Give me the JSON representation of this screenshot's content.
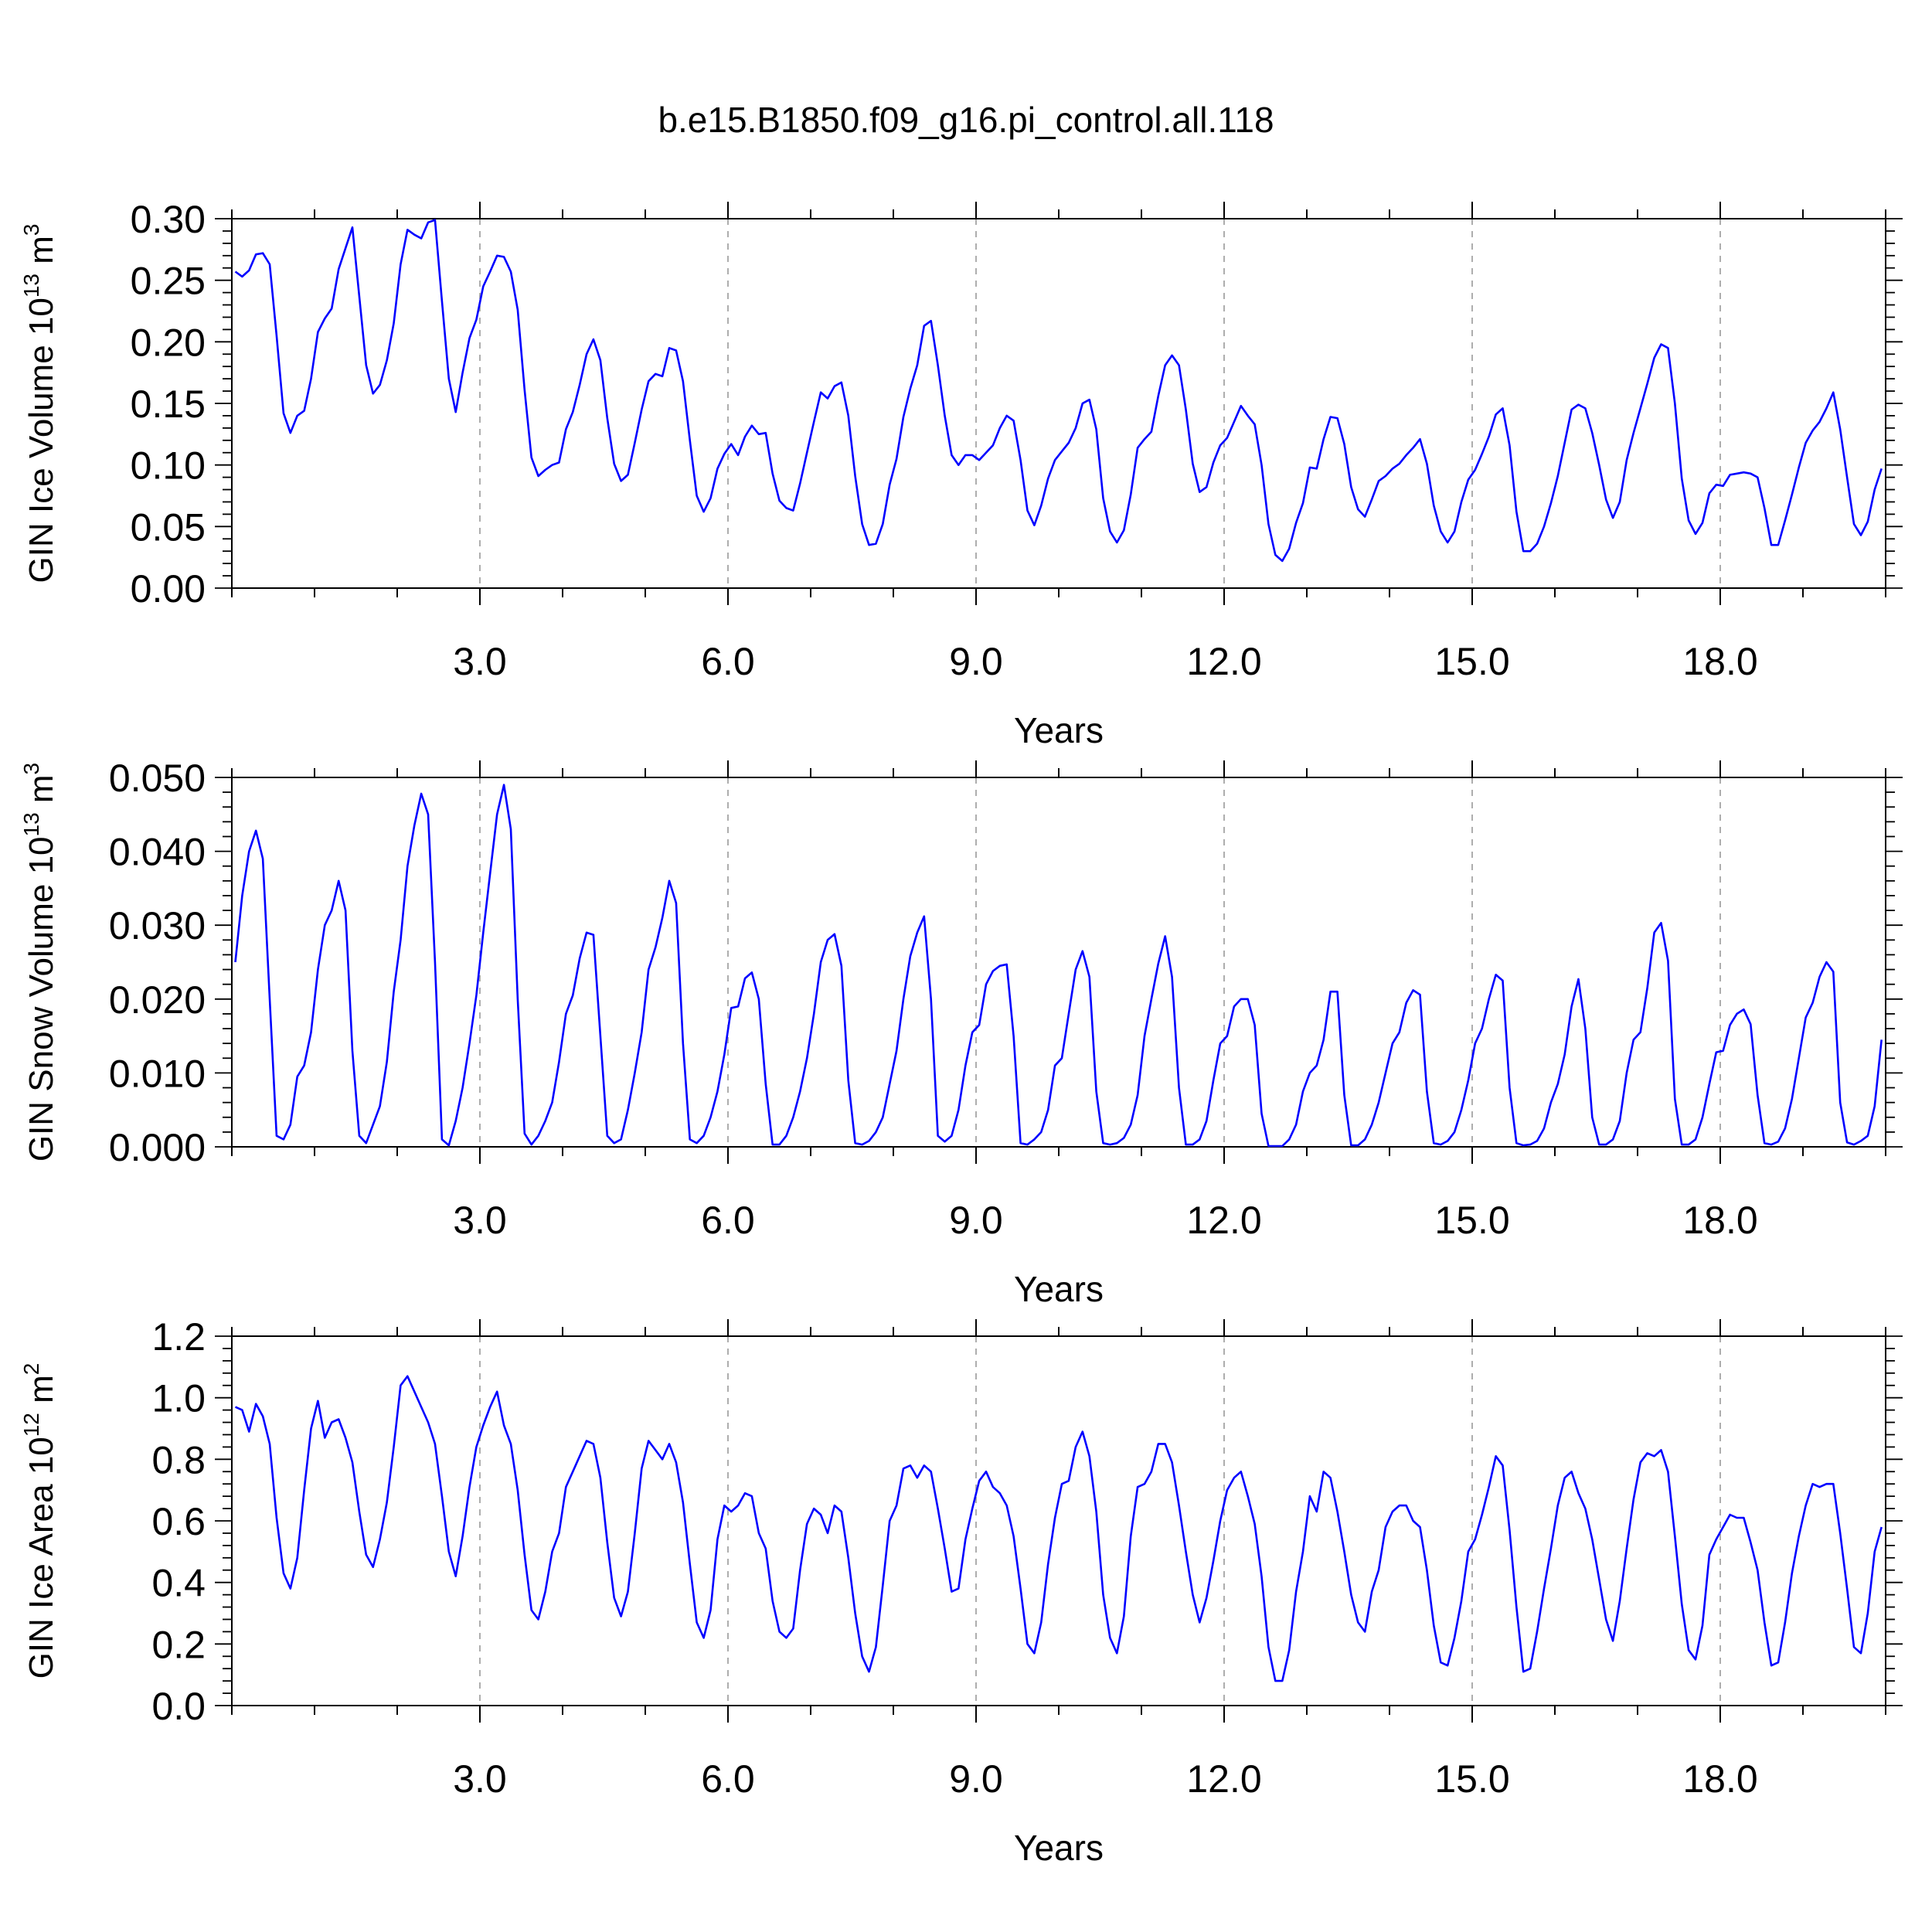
{
  "title": "b.e15.B1850.f09_g16.pi_control.all.118",
  "colors": {
    "series": "#0000ff",
    "axis": "#000000",
    "grid": "#999999",
    "background": "#ffffff"
  },
  "chart_data": [
    {
      "type": "line",
      "ylabel": "GIN Ice Volume 10",
      "ylabel_exp": "13",
      "ylabel_unit": " m",
      "ylabel_unit_exp": "3",
      "xlabel": "Years",
      "xlim": [
        0,
        20
      ],
      "ylim": [
        0,
        0.3
      ],
      "xticks": [
        3,
        6,
        9,
        12,
        15,
        18
      ],
      "xtick_labels": [
        "3.0",
        "6.0",
        "9.0",
        "12.0",
        "15.0",
        "18.0"
      ],
      "yticks": [
        0,
        0.05,
        0.1,
        0.15,
        0.2,
        0.25,
        0.3
      ],
      "ytick_labels": [
        "0.00",
        "0.05",
        "0.10",
        "0.15",
        "0.20",
        "0.25",
        "0.30"
      ],
      "grid": "vertical dashed at major x ticks",
      "x_start": 0.0417,
      "x_step": 0.0833,
      "values": [
        0.257,
        0.253,
        0.258,
        0.271,
        0.272,
        0.263,
        0.205,
        0.142,
        0.126,
        0.14,
        0.144,
        0.17,
        0.208,
        0.219,
        0.227,
        0.259,
        0.276,
        0.293,
        0.237,
        0.181,
        0.158,
        0.165,
        0.185,
        0.215,
        0.263,
        0.291,
        0.287,
        0.284,
        0.297,
        0.299,
        0.233,
        0.17,
        0.143,
        0.175,
        0.203,
        0.218,
        0.245,
        0.257,
        0.27,
        0.269,
        0.257,
        0.226,
        0.161,
        0.106,
        0.091,
        0.096,
        0.1,
        0.102,
        0.129,
        0.143,
        0.165,
        0.19,
        0.202,
        0.185,
        0.138,
        0.101,
        0.087,
        0.092,
        0.118,
        0.145,
        0.168,
        0.174,
        0.172,
        0.195,
        0.193,
        0.168,
        0.12,
        0.075,
        0.062,
        0.073,
        0.097,
        0.109,
        0.117,
        0.108,
        0.123,
        0.132,
        0.125,
        0.126,
        0.093,
        0.071,
        0.065,
        0.063,
        0.085,
        0.11,
        0.135,
        0.159,
        0.154,
        0.164,
        0.167,
        0.14,
        0.091,
        0.052,
        0.035,
        0.036,
        0.052,
        0.084,
        0.105,
        0.139,
        0.162,
        0.181,
        0.213,
        0.217,
        0.181,
        0.14,
        0.108,
        0.1,
        0.108,
        0.108,
        0.104,
        0.11,
        0.116,
        0.13,
        0.14,
        0.136,
        0.104,
        0.063,
        0.051,
        0.067,
        0.089,
        0.104,
        0.111,
        0.118,
        0.13,
        0.15,
        0.153,
        0.129,
        0.073,
        0.046,
        0.037,
        0.047,
        0.076,
        0.114,
        0.121,
        0.127,
        0.156,
        0.181,
        0.189,
        0.181,
        0.145,
        0.101,
        0.078,
        0.082,
        0.102,
        0.116,
        0.122,
        0.135,
        0.148,
        0.14,
        0.133,
        0.1,
        0.052,
        0.027,
        0.022,
        0.032,
        0.053,
        0.069,
        0.098,
        0.097,
        0.121,
        0.139,
        0.138,
        0.117,
        0.082,
        0.064,
        0.058,
        0.072,
        0.087,
        0.091,
        0.097,
        0.101,
        0.108,
        0.114,
        0.121,
        0.101,
        0.067,
        0.046,
        0.037,
        0.046,
        0.07,
        0.088,
        0.096,
        0.109,
        0.123,
        0.141,
        0.146,
        0.116,
        0.062,
        0.03,
        0.03,
        0.036,
        0.05,
        0.069,
        0.091,
        0.118,
        0.145,
        0.149,
        0.146,
        0.126,
        0.1,
        0.072,
        0.057,
        0.07,
        0.104,
        0.126,
        0.146,
        0.166,
        0.187,
        0.198,
        0.195,
        0.15,
        0.089,
        0.055,
        0.044,
        0.053,
        0.077,
        0.084,
        0.083,
        0.092,
        0.093,
        0.094,
        0.093,
        0.09,
        0.065,
        0.035,
        0.035,
        0.055,
        0.076,
        0.098,
        0.118,
        0.128,
        0.135,
        0.146,
        0.159,
        0.129,
        0.09,
        0.052,
        0.043,
        0.054,
        0.08,
        0.097
      ]
    },
    {
      "type": "line",
      "ylabel": "GIN Snow Volume 10",
      "ylabel_exp": "13",
      "ylabel_unit": " m",
      "ylabel_unit_exp": "3",
      "xlabel": "Years",
      "xlim": [
        0,
        20
      ],
      "ylim": [
        0,
        0.05
      ],
      "xticks": [
        3,
        6,
        9,
        12,
        15,
        18
      ],
      "xtick_labels": [
        "3.0",
        "6.0",
        "9.0",
        "12.0",
        "15.0",
        "18.0"
      ],
      "yticks": [
        0,
        0.01,
        0.02,
        0.03,
        0.04,
        0.05
      ],
      "ytick_labels": [
        "0.000",
        "0.010",
        "0.020",
        "0.030",
        "0.040",
        "0.050"
      ],
      "grid": "vertical dashed at major x ticks",
      "x_start": 0.0417,
      "x_step": 0.0833,
      "values": [
        0.025,
        0.034,
        0.04,
        0.0428,
        0.039,
        0.02,
        0.0015,
        0.001,
        0.003,
        0.0095,
        0.011,
        0.0155,
        0.024,
        0.03,
        0.032,
        0.036,
        0.032,
        0.013,
        0.0015,
        0.0005,
        0.003,
        0.0055,
        0.0115,
        0.021,
        0.028,
        0.038,
        0.0435,
        0.0478,
        0.045,
        0.025,
        0.001,
        0.0002,
        0.0035,
        0.008,
        0.014,
        0.0205,
        0.029,
        0.037,
        0.045,
        0.049,
        0.043,
        0.02,
        0.0018,
        0.0003,
        0.0015,
        0.0035,
        0.006,
        0.0115,
        0.018,
        0.0205,
        0.0255,
        0.029,
        0.0287,
        0.015,
        0.0015,
        0.0005,
        0.001,
        0.005,
        0.01,
        0.0155,
        0.024,
        0.027,
        0.031,
        0.036,
        0.033,
        0.014,
        0.001,
        0.0005,
        0.0015,
        0.004,
        0.0075,
        0.0125,
        0.0188,
        0.019,
        0.0228,
        0.0236,
        0.02,
        0.0085,
        0.0003,
        0.0003,
        0.0015,
        0.004,
        0.0075,
        0.012,
        0.018,
        0.025,
        0.028,
        0.0288,
        0.0245,
        0.009,
        0.0005,
        0.0003,
        0.0008,
        0.002,
        0.004,
        0.0085,
        0.013,
        0.02,
        0.0258,
        0.029,
        0.0312,
        0.02,
        0.0015,
        0.0007,
        0.0015,
        0.005,
        0.011,
        0.0155,
        0.0165,
        0.022,
        0.0238,
        0.0245,
        0.0247,
        0.015,
        0.0005,
        0.0003,
        0.001,
        0.002,
        0.005,
        0.011,
        0.012,
        0.018,
        0.024,
        0.0265,
        0.023,
        0.0075,
        0.0005,
        0.0003,
        0.0005,
        0.0012,
        0.003,
        0.007,
        0.015,
        0.02,
        0.0248,
        0.0285,
        0.023,
        0.008,
        0.0003,
        0.0003,
        0.001,
        0.0035,
        0.009,
        0.014,
        0.015,
        0.019,
        0.02,
        0.02,
        0.0165,
        0.0045,
        0.0001,
        0.0001,
        0.0001,
        0.001,
        0.003,
        0.0075,
        0.01,
        0.011,
        0.0145,
        0.021,
        0.021,
        0.007,
        0.0002,
        0.0002,
        0.001,
        0.003,
        0.006,
        0.01,
        0.014,
        0.0155,
        0.0195,
        0.0212,
        0.0206,
        0.0075,
        0.0005,
        0.0003,
        0.0008,
        0.002,
        0.005,
        0.009,
        0.014,
        0.016,
        0.02,
        0.0233,
        0.0225,
        0.008,
        0.0005,
        0.0002,
        0.0003,
        0.0008,
        0.0025,
        0.006,
        0.0085,
        0.0125,
        0.019,
        0.0227,
        0.016,
        0.004,
        0.0003,
        0.0003,
        0.001,
        0.0035,
        0.01,
        0.0145,
        0.0155,
        0.0215,
        0.029,
        0.0303,
        0.0252,
        0.0065,
        0.0003,
        0.0003,
        0.001,
        0.004,
        0.0085,
        0.0128,
        0.013,
        0.0165,
        0.018,
        0.0186,
        0.0166,
        0.007,
        0.0005,
        0.0003,
        0.0007,
        0.0025,
        0.0065,
        0.012,
        0.0175,
        0.0195,
        0.023,
        0.025,
        0.0237,
        0.006,
        0.0006,
        0.0003,
        0.0008,
        0.0015,
        0.0055,
        0.0145
      ]
    },
    {
      "type": "line",
      "ylabel": "GIN Ice Area 10",
      "ylabel_exp": "12",
      "ylabel_unit": " m",
      "ylabel_unit_exp": "2",
      "xlabel": "Years",
      "xlim": [
        0,
        20
      ],
      "ylim": [
        0,
        1.2
      ],
      "xticks": [
        3,
        6,
        9,
        12,
        15,
        18
      ],
      "xtick_labels": [
        "3.0",
        "6.0",
        "9.0",
        "12.0",
        "15.0",
        "18.0"
      ],
      "yticks": [
        0,
        0.2,
        0.4,
        0.6,
        0.8,
        1.0,
        1.2
      ],
      "ytick_labels": [
        "0.0",
        "0.2",
        "0.4",
        "0.6",
        "0.8",
        "1.0",
        "1.2"
      ],
      "grid": "vertical dashed at major x ticks",
      "x_start": 0.0417,
      "x_step": 0.0833,
      "values": [
        0.97,
        0.96,
        0.89,
        0.98,
        0.94,
        0.85,
        0.61,
        0.43,
        0.38,
        0.48,
        0.7,
        0.9,
        0.99,
        0.87,
        0.92,
        0.93,
        0.87,
        0.79,
        0.63,
        0.49,
        0.45,
        0.54,
        0.66,
        0.84,
        1.04,
        1.07,
        1.02,
        0.97,
        0.92,
        0.85,
        0.68,
        0.5,
        0.42,
        0.55,
        0.71,
        0.84,
        0.91,
        0.97,
        1.02,
        0.91,
        0.85,
        0.7,
        0.49,
        0.31,
        0.28,
        0.37,
        0.5,
        0.56,
        0.71,
        0.76,
        0.81,
        0.86,
        0.85,
        0.74,
        0.53,
        0.35,
        0.29,
        0.37,
        0.56,
        0.77,
        0.86,
        0.83,
        0.8,
        0.85,
        0.79,
        0.66,
        0.46,
        0.27,
        0.22,
        0.31,
        0.54,
        0.65,
        0.63,
        0.65,
        0.69,
        0.68,
        0.56,
        0.51,
        0.34,
        0.24,
        0.22,
        0.25,
        0.44,
        0.59,
        0.64,
        0.62,
        0.56,
        0.65,
        0.63,
        0.48,
        0.3,
        0.16,
        0.11,
        0.19,
        0.39,
        0.6,
        0.65,
        0.77,
        0.78,
        0.74,
        0.78,
        0.76,
        0.64,
        0.51,
        0.37,
        0.38,
        0.54,
        0.64,
        0.73,
        0.76,
        0.71,
        0.69,
        0.65,
        0.55,
        0.38,
        0.2,
        0.17,
        0.27,
        0.46,
        0.61,
        0.72,
        0.73,
        0.84,
        0.89,
        0.81,
        0.63,
        0.36,
        0.22,
        0.17,
        0.29,
        0.55,
        0.71,
        0.72,
        0.76,
        0.85,
        0.85,
        0.79,
        0.65,
        0.5,
        0.36,
        0.27,
        0.35,
        0.47,
        0.6,
        0.7,
        0.74,
        0.76,
        0.68,
        0.59,
        0.42,
        0.19,
        0.08,
        0.08,
        0.18,
        0.37,
        0.5,
        0.68,
        0.63,
        0.76,
        0.74,
        0.63,
        0.5,
        0.36,
        0.27,
        0.24,
        0.37,
        0.44,
        0.58,
        0.63,
        0.65,
        0.65,
        0.6,
        0.58,
        0.44,
        0.26,
        0.14,
        0.13,
        0.22,
        0.34,
        0.5,
        0.54,
        0.62,
        0.71,
        0.81,
        0.78,
        0.57,
        0.32,
        0.11,
        0.12,
        0.24,
        0.38,
        0.51,
        0.65,
        0.74,
        0.76,
        0.69,
        0.64,
        0.54,
        0.41,
        0.28,
        0.21,
        0.34,
        0.51,
        0.67,
        0.79,
        0.82,
        0.81,
        0.83,
        0.76,
        0.55,
        0.33,
        0.18,
        0.15,
        0.26,
        0.49,
        0.54,
        0.58,
        0.62,
        0.61,
        0.61,
        0.53,
        0.44,
        0.27,
        0.13,
        0.14,
        0.27,
        0.43,
        0.55,
        0.65,
        0.72,
        0.71,
        0.72,
        0.72,
        0.56,
        0.38,
        0.19,
        0.17,
        0.3,
        0.5,
        0.58
      ]
    }
  ]
}
